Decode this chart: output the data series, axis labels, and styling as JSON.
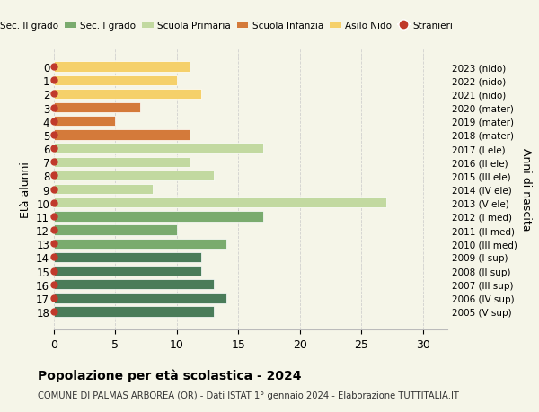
{
  "ages": [
    18,
    17,
    16,
    15,
    14,
    13,
    12,
    11,
    10,
    9,
    8,
    7,
    6,
    5,
    4,
    3,
    2,
    1,
    0
  ],
  "right_labels": [
    "2005 (V sup)",
    "2006 (IV sup)",
    "2007 (III sup)",
    "2008 (II sup)",
    "2009 (I sup)",
    "2010 (III med)",
    "2011 (II med)",
    "2012 (I med)",
    "2013 (V ele)",
    "2014 (IV ele)",
    "2015 (III ele)",
    "2016 (II ele)",
    "2017 (I ele)",
    "2018 (mater)",
    "2019 (mater)",
    "2020 (mater)",
    "2021 (nido)",
    "2022 (nido)",
    "2023 (nido)"
  ],
  "values": [
    13,
    14,
    13,
    12,
    12,
    14,
    10,
    17,
    27,
    8,
    13,
    11,
    17,
    11,
    5,
    7,
    12,
    10,
    11
  ],
  "colors": [
    "#4a7c59",
    "#4a7c59",
    "#4a7c59",
    "#4a7c59",
    "#4a7c59",
    "#7aab6e",
    "#7aab6e",
    "#7aab6e",
    "#c2d9a0",
    "#c2d9a0",
    "#c2d9a0",
    "#c2d9a0",
    "#c2d9a0",
    "#d47a3a",
    "#d47a3a",
    "#d47a3a",
    "#f5d06a",
    "#f5d06a",
    "#f5d06a"
  ],
  "legend_labels": [
    "Sec. II grado",
    "Sec. I grado",
    "Scuola Primaria",
    "Scuola Infanzia",
    "Asilo Nido",
    "Stranieri"
  ],
  "legend_colors": [
    "#4a7c59",
    "#7aab6e",
    "#c2d9a0",
    "#d47a3a",
    "#f5d06a",
    "#c0392b"
  ],
  "ylabel": "Età alunni",
  "right_ylabel": "Anni di nascita",
  "title": "Popolazione per età scolastica - 2024",
  "subtitle": "COMUNE DI PALMAS ARBOREA (OR) - Dati ISTAT 1° gennaio 2024 - Elaborazione TUTTITALIA.IT",
  "xlim": [
    0,
    32
  ],
  "xticks": [
    0,
    5,
    10,
    15,
    20,
    25,
    30
  ],
  "background_color": "#f5f5e8",
  "bar_edge_color": "white",
  "dot_color": "#c0392b",
  "dot_size": 25
}
